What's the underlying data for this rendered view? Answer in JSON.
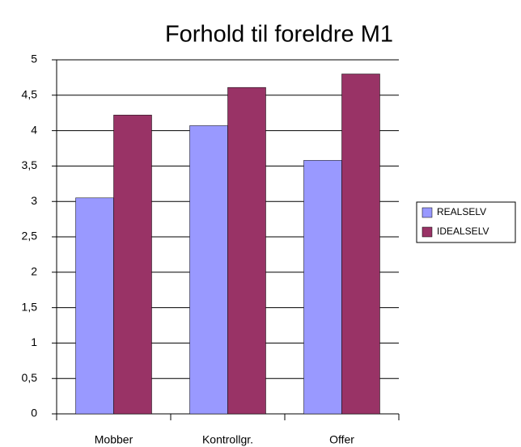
{
  "chart_data": {
    "type": "bar",
    "title": "Forhold til foreldre M1",
    "categories": [
      "Mobber",
      "Kontrollgr.",
      "Offer"
    ],
    "series": [
      {
        "name": "REALSELV",
        "color": "#9999ff",
        "values": [
          3.05,
          4.07,
          3.58
        ]
      },
      {
        "name": "IDEALSELV",
        "color": "#993366",
        "values": [
          4.22,
          4.61,
          4.8
        ]
      }
    ],
    "ylim": [
      0,
      5
    ],
    "yticks": [
      0,
      {
        "value": 0.5,
        "label": "0,5"
      },
      1,
      {
        "value": 1.5,
        "label": "1,5"
      },
      2,
      {
        "value": 2.5,
        "label": "2,5"
      },
      3,
      {
        "value": 3.5,
        "label": "3,5"
      },
      4,
      {
        "value": 4.5,
        "label": "4,5"
      },
      5
    ],
    "grid": true,
    "legend": "right"
  }
}
